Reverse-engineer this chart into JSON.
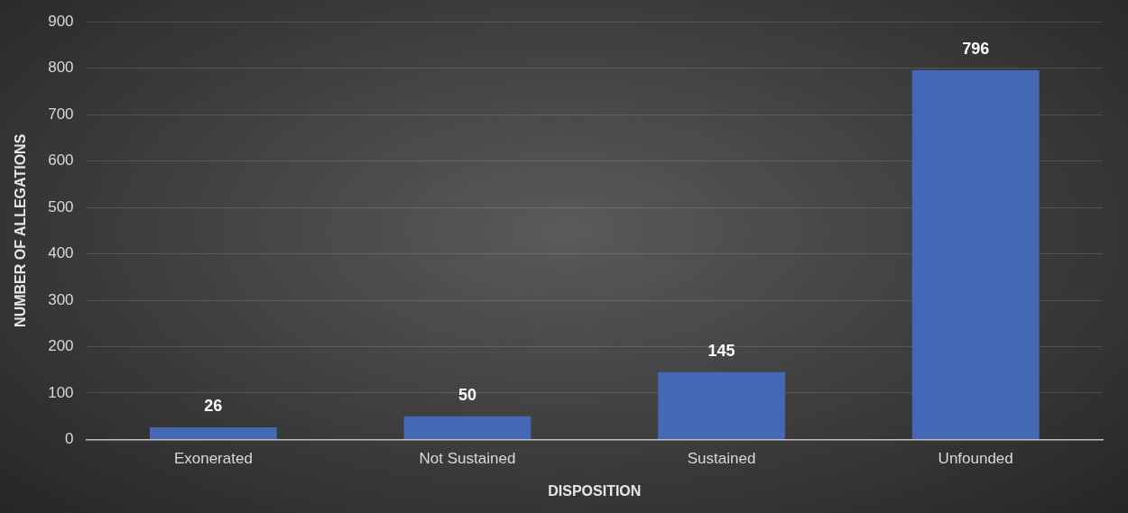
{
  "chart_data": {
    "type": "bar",
    "xlabel": "DISPOSITION",
    "ylabel": "NUMBER OF ALLEGATIONS",
    "categories": [
      "Exonerated",
      "Not Sustained",
      "Sustained",
      "Unfounded"
    ],
    "values": [
      26,
      50,
      145,
      796
    ],
    "color": "#4468b5",
    "ylim": [
      0,
      900
    ],
    "yticks": [
      0,
      100,
      200,
      300,
      400,
      500,
      600,
      700,
      800,
      900
    ],
    "grid": "y",
    "data_labels": true,
    "legend": false
  }
}
